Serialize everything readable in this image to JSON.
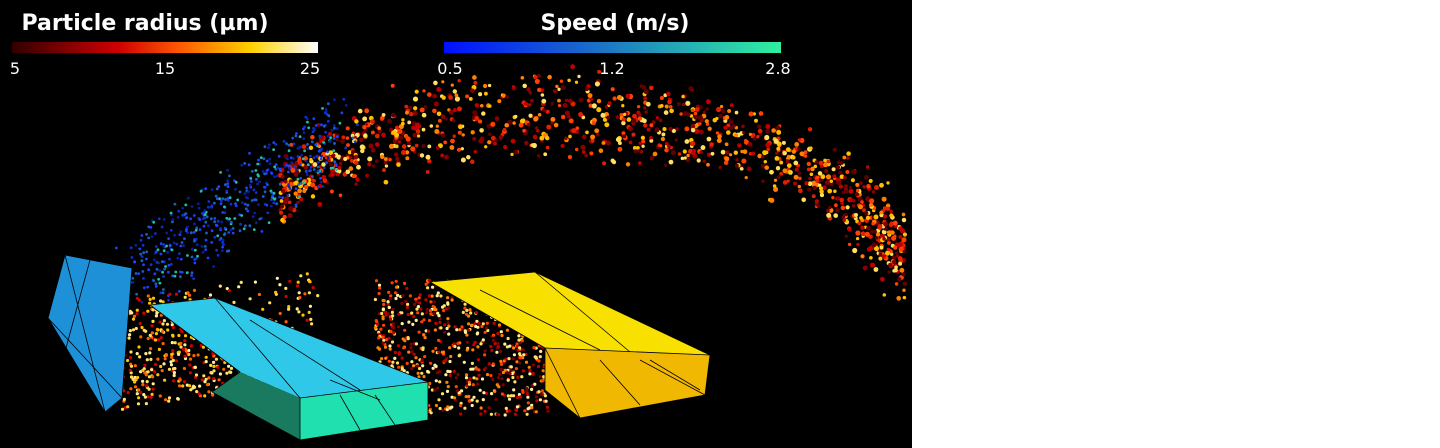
{
  "colorbars": [
    {
      "title": "Particle radius (µm)",
      "ticks": [
        "5",
        "15",
        "25"
      ]
    },
    {
      "title": "Speed (m/s)",
      "ticks": [
        "0.5",
        "1.2",
        "2.8"
      ]
    }
  ]
}
